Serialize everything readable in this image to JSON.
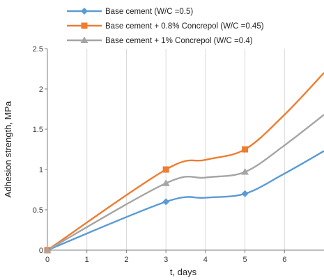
{
  "chart_data": {
    "type": "line",
    "title": "",
    "xlabel": "t, days",
    "ylabel": "Adhesion strength, MPa",
    "xlim": [
      0,
      7
    ],
    "ylim": [
      0,
      2.5
    ],
    "x_ticks": [
      "0",
      "1",
      "2",
      "3",
      "4",
      "5",
      "6"
    ],
    "y_ticks": [
      "0",
      "0.5",
      "1",
      "1.5",
      "2",
      "2.5"
    ],
    "grid": "vertical",
    "legend_position": "top",
    "series": [
      {
        "name": "Base cement (W/C =0.5)",
        "color": "#5b9bd5",
        "marker": "diamond",
        "x": [
          0,
          3,
          5
        ],
        "y": [
          0,
          0.6,
          0.7
        ],
        "curve_x": [
          0,
          3,
          4,
          5,
          6,
          7
        ],
        "curve_y": [
          0,
          0.6,
          0.65,
          0.7,
          0.95,
          1.23
        ]
      },
      {
        "name": "Base cement + 0.8% Concrepol (W/C =0.45)",
        "color": "#ed7d31",
        "marker": "square",
        "x": [
          0,
          3,
          5
        ],
        "y": [
          0,
          1.0,
          1.25
        ],
        "curve_x": [
          0,
          3,
          4,
          5,
          6,
          7
        ],
        "curve_y": [
          0,
          1.0,
          1.12,
          1.25,
          1.68,
          2.2
        ]
      },
      {
        "name": "Base cement + 1% Concrepol (W/C =0.4)",
        "color": "#a5a5a5",
        "marker": "triangle",
        "x": [
          0,
          3,
          5
        ],
        "y": [
          0,
          0.83,
          0.97
        ],
        "curve_x": [
          0,
          3,
          4,
          5,
          6,
          7
        ],
        "curve_y": [
          0,
          0.83,
          0.9,
          0.97,
          1.3,
          1.68
        ]
      }
    ]
  }
}
